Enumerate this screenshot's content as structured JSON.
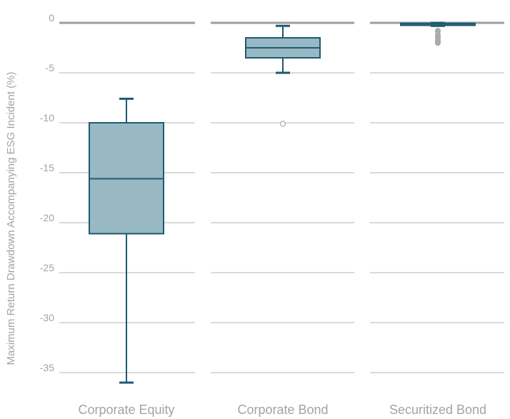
{
  "chart_data": {
    "type": "boxplot",
    "title": "",
    "xlabel": "",
    "ylabel": "Maximum Return Drawdown Accompanying ESG Incident (%)",
    "ylim": [
      -37,
      1.5
    ],
    "yticks": [
      0,
      -5,
      -10,
      -15,
      -20,
      -25,
      -30,
      -35
    ],
    "grid": true,
    "legend": "none",
    "colors": {
      "box_fill": "#98b9c4",
      "box_stroke": "#1e5a72",
      "grid": "#b5b5b5",
      "zero_line": "#9e9e9e",
      "text": "#a3a3a3",
      "outlier_fill": "#ababab"
    },
    "categories": [
      "Corporate Equity",
      "Corporate Bond",
      "Securitized Bond"
    ],
    "boxes": [
      {
        "category": "Corporate Equity",
        "whisker_low": -36,
        "q1": -21.1,
        "median": -15.6,
        "q3": -10,
        "whisker_high": -7.6,
        "outliers": []
      },
      {
        "category": "Corporate Bond",
        "whisker_low": -5,
        "q1": -3.5,
        "median": -2.5,
        "q3": -1.5,
        "whisker_high": -0.3,
        "outliers": [
          -10.1
        ]
      },
      {
        "category": "Securitized Bond",
        "whisker_low": -0.3,
        "q1": -0.25,
        "median": -0.1,
        "q3": -0.05,
        "whisker_high": 0,
        "outliers": [
          -0.8,
          -1.2,
          -1.5,
          -1.8,
          -2.0
        ]
      }
    ]
  }
}
